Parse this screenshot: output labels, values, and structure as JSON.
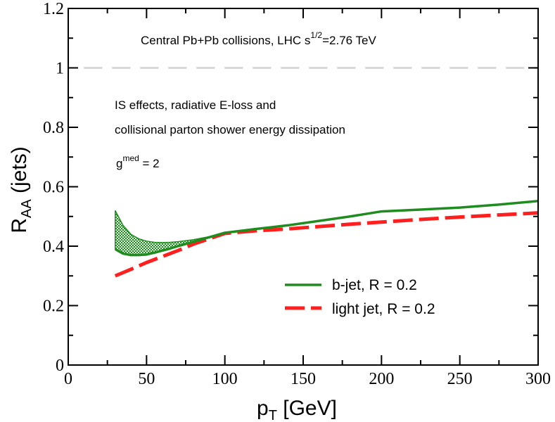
{
  "chart_data": {
    "type": "line",
    "xlabel_main": "p",
    "xlabel_sub": "T",
    "xlabel_rest": " [GeV]",
    "ylabel_main": "R",
    "ylabel_sub": "AA",
    "ylabel_rest": " (jets)",
    "xlim": [
      0,
      300
    ],
    "ylim": [
      0,
      1.2
    ],
    "x_ticks": [
      0,
      50,
      100,
      150,
      200,
      250,
      300
    ],
    "x_tick_labels": [
      "0",
      "50",
      "100",
      "150",
      "200",
      "250",
      "300"
    ],
    "y_ticks": [
      0,
      0.2,
      0.4,
      0.6,
      0.8,
      1.0,
      1.2
    ],
    "y_tick_labels": [
      "0",
      "0.2",
      "0.4",
      "0.6",
      "0.8",
      "1",
      "1.2"
    ],
    "reference_line": {
      "y": 1.0,
      "color": "#d8d8d8"
    },
    "annotations": {
      "collision_a": "Central Pb+Pb collisions, LHC s",
      "collision_sup": "1/2",
      "collision_b": "=2.76 TeV",
      "effects_line1": "IS effects, radiative E-loss and",
      "effects_line2": "collisional parton shower energy dissipation",
      "coupling_a": "g",
      "coupling_sup": "med",
      "coupling_b": " = 2"
    },
    "series": [
      {
        "name": "b-jet, R = 0.2",
        "color": "#1f8c1f",
        "style": "solid",
        "x": [
          30,
          35,
          40,
          45,
          50,
          55,
          60,
          65,
          70,
          80,
          90,
          100,
          120,
          140,
          160,
          180,
          200,
          225,
          250,
          275,
          300
        ],
        "y": [
          0.39,
          0.375,
          0.37,
          0.37,
          0.372,
          0.378,
          0.385,
          0.392,
          0.4,
          0.415,
          0.43,
          0.445,
          0.458,
          0.47,
          0.485,
          0.5,
          0.517,
          0.523,
          0.53,
          0.54,
          0.552
        ],
        "band_upper": [
          0.52,
          0.47,
          0.44,
          0.425,
          0.417,
          0.413,
          0.412,
          0.413,
          0.415,
          0.422,
          0.432,
          0.445
        ]
      },
      {
        "name": "light jet, R = 0.2",
        "color": "#ff1f1f",
        "style": "dashed",
        "x": [
          30,
          40,
          50,
          60,
          70,
          80,
          90,
          100,
          120,
          140,
          160,
          180,
          200,
          225,
          250,
          275,
          300
        ],
        "y": [
          0.3,
          0.322,
          0.345,
          0.365,
          0.385,
          0.407,
          0.425,
          0.443,
          0.452,
          0.458,
          0.466,
          0.474,
          0.481,
          0.49,
          0.498,
          0.505,
          0.512
        ]
      }
    ],
    "legend_position": "lower-right"
  }
}
